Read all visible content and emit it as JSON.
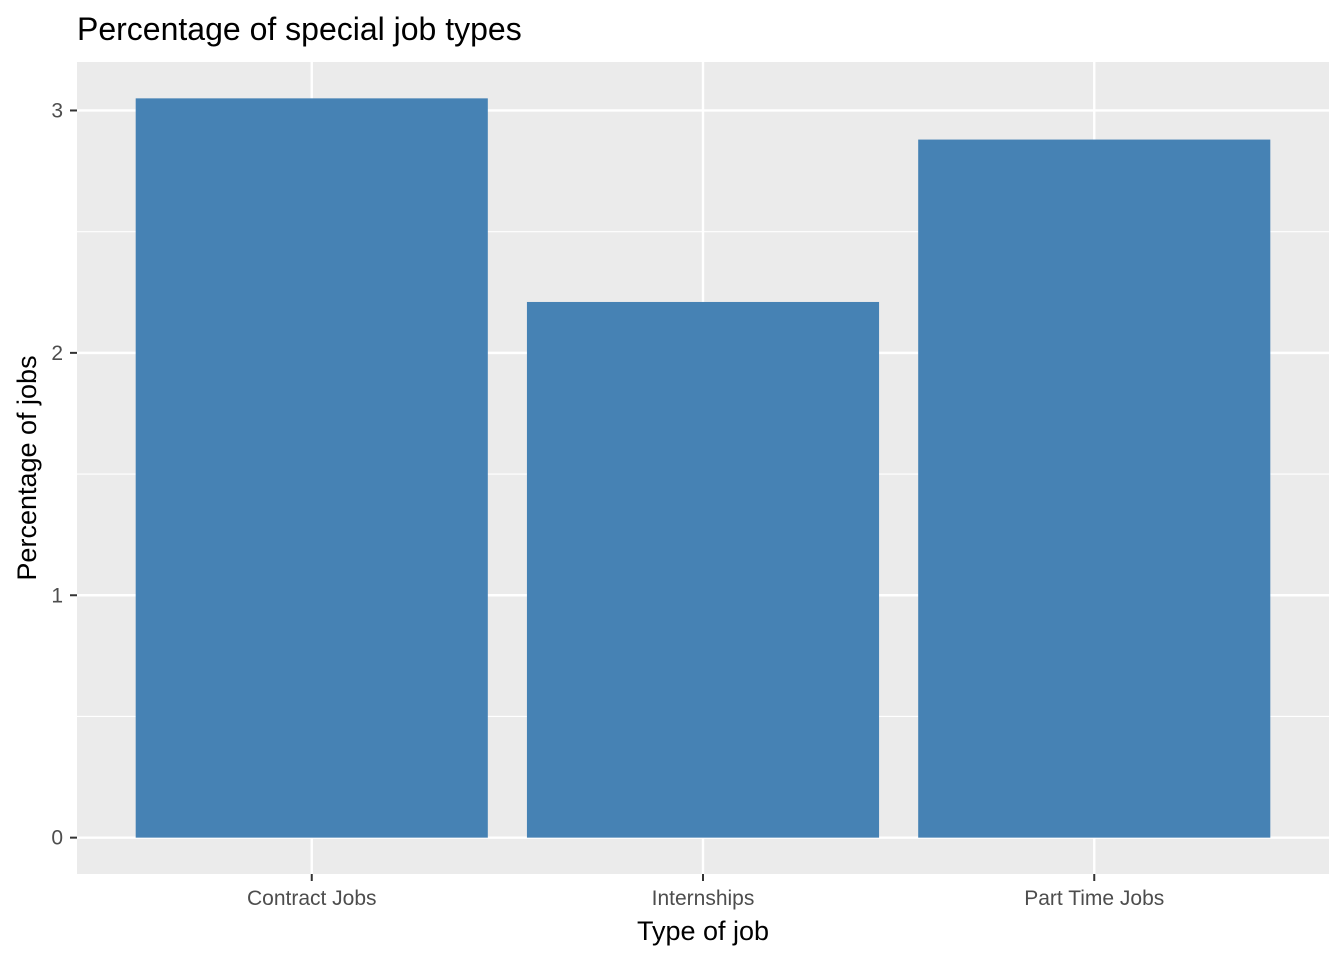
{
  "chart_data": {
    "type": "bar",
    "title": "Percentage of special job types",
    "xlabel": "Type of job",
    "ylabel": "Percentage of jobs",
    "categories": [
      "Contract Jobs",
      "Internships",
      "Part Time Jobs"
    ],
    "values": [
      3.05,
      2.21,
      2.88
    ],
    "ylim": [
      -0.15,
      3.2
    ],
    "yticks": [
      "0",
      "1",
      "2",
      "3"
    ],
    "grid": true,
    "legend": "none",
    "colors": {
      "bar": "#4682b4",
      "panel": "#ebebeb",
      "grid": "#ffffff"
    }
  }
}
